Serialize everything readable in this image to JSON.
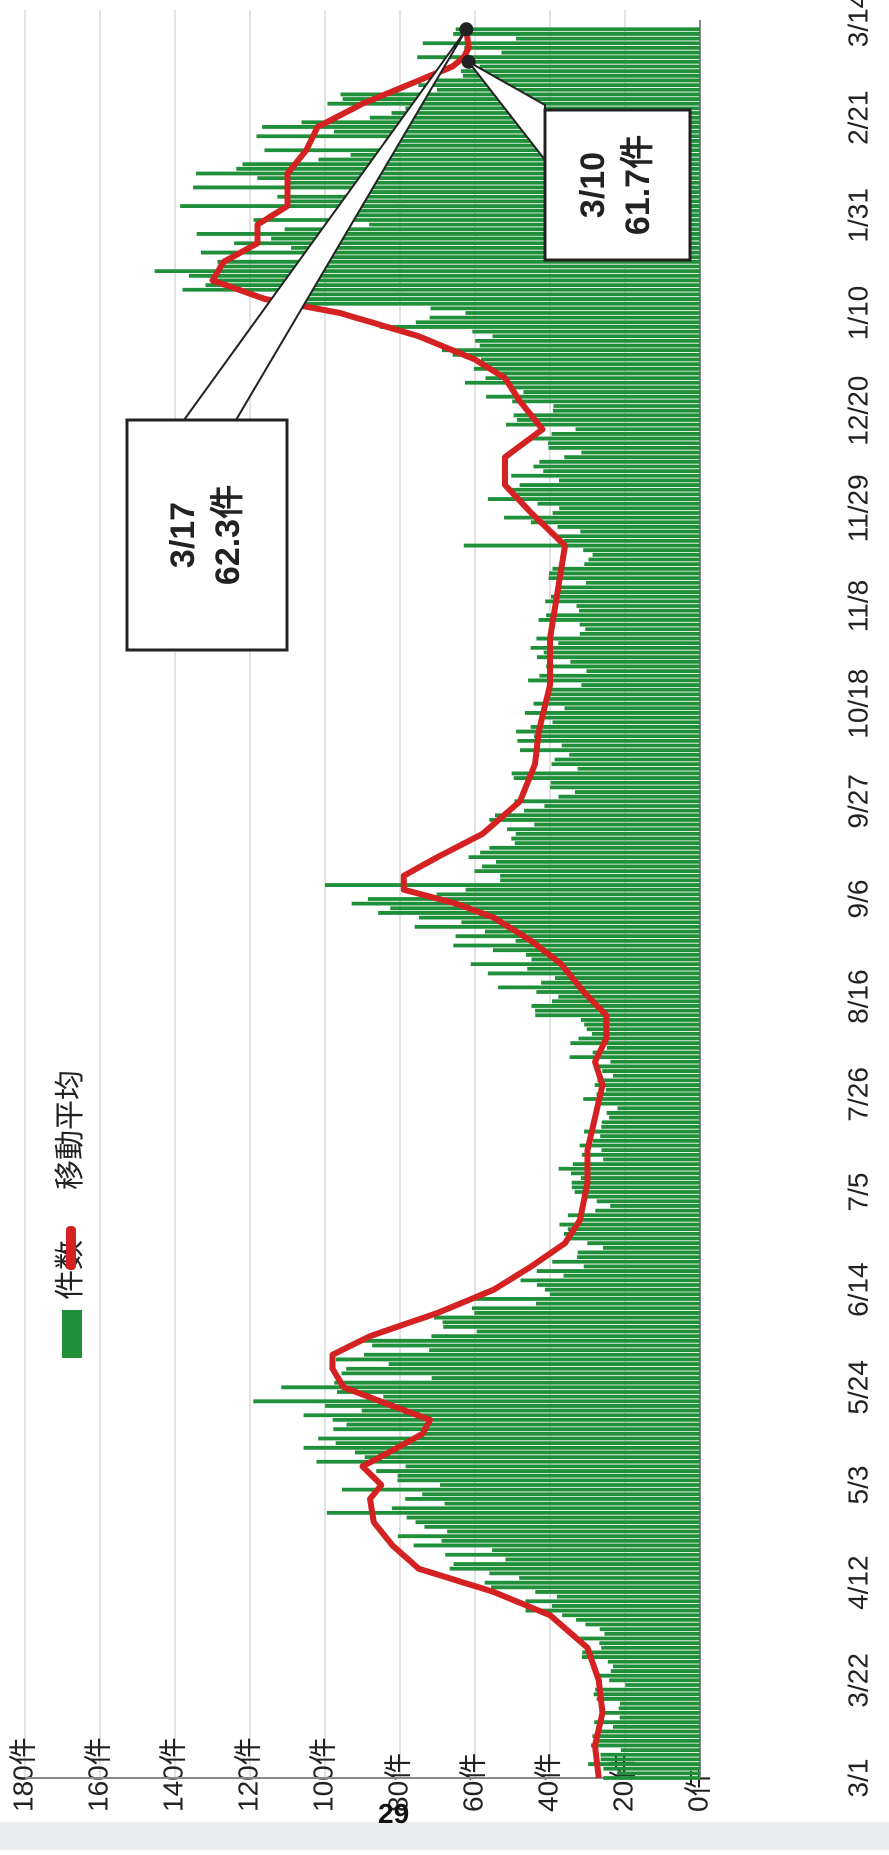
{
  "chart_data": {
    "type": "bar+line",
    "orientation": "rotated-90-clockwise",
    "title": "",
    "xlabel": "",
    "ylabel": "",
    "ylim": [
      0,
      180
    ],
    "y_ticks": [
      "0件",
      "20件",
      "40件",
      "60件",
      "80件",
      "100件",
      "120件",
      "140件",
      "160件",
      "180件"
    ],
    "x_ticks": [
      "3/1",
      "3/22",
      "4/12",
      "5/3",
      "5/24",
      "6/14",
      "7/5",
      "7/26",
      "8/16",
      "9/6",
      "9/27",
      "10/18",
      "11/8",
      "11/29",
      "12/20",
      "1/10",
      "1/31",
      "2/21",
      "3/14"
    ],
    "grid": true,
    "legend_position": "top-left",
    "series": [
      {
        "name": "件数",
        "type": "bar",
        "color": "#1f8f3a",
        "keypoints": [
          [
            0,
            24
          ],
          [
            10,
            25
          ],
          [
            20,
            24
          ],
          [
            30,
            28
          ],
          [
            40,
            45
          ],
          [
            50,
            70
          ],
          [
            60,
            88
          ],
          [
            70,
            90
          ],
          [
            80,
            100
          ],
          [
            90,
            85
          ],
          [
            100,
            58
          ],
          [
            110,
            35
          ],
          [
            120,
            30
          ],
          [
            130,
            32
          ],
          [
            140,
            28
          ],
          [
            150,
            24
          ],
          [
            160,
            35
          ],
          [
            170,
            45
          ],
          [
            180,
            55
          ],
          [
            188,
            85
          ],
          [
            195,
            60
          ],
          [
            210,
            42
          ],
          [
            225,
            40
          ],
          [
            240,
            38
          ],
          [
            255,
            35
          ],
          [
            265,
            35
          ],
          [
            275,
            50
          ],
          [
            285,
            38
          ],
          [
            295,
            45
          ],
          [
            305,
            58
          ],
          [
            315,
            80
          ],
          [
            320,
            115
          ],
          [
            325,
            120
          ],
          [
            335,
            110
          ],
          [
            340,
            115
          ],
          [
            350,
            105
          ],
          [
            360,
            95
          ],
          [
            370,
            65
          ],
          [
            375,
            60
          ]
        ]
      },
      {
        "name": "移動平均",
        "type": "line",
        "color": "#d42222",
        "keypoints": [
          [
            0,
            27
          ],
          [
            7,
            28
          ],
          [
            14,
            26
          ],
          [
            21,
            27
          ],
          [
            28,
            30
          ],
          [
            35,
            40
          ],
          [
            40,
            55
          ],
          [
            45,
            75
          ],
          [
            50,
            82
          ],
          [
            55,
            87
          ],
          [
            60,
            88
          ],
          [
            63,
            85
          ],
          [
            67,
            90
          ],
          [
            70,
            83
          ],
          [
            74,
            74
          ],
          [
            77,
            72
          ],
          [
            80,
            82
          ],
          [
            84,
            95
          ],
          [
            88,
            98
          ],
          [
            91,
            98
          ],
          [
            95,
            88
          ],
          [
            100,
            70
          ],
          [
            105,
            55
          ],
          [
            110,
            45
          ],
          [
            115,
            36
          ],
          [
            120,
            32
          ],
          [
            128,
            30
          ],
          [
            135,
            30
          ],
          [
            142,
            28
          ],
          [
            149,
            26
          ],
          [
            154,
            28
          ],
          [
            159,
            25
          ],
          [
            164,
            25
          ],
          [
            169,
            31
          ],
          [
            175,
            37
          ],
          [
            180,
            45
          ],
          [
            185,
            55
          ],
          [
            188,
            65
          ],
          [
            191,
            79
          ],
          [
            194,
            79
          ],
          [
            198,
            70
          ],
          [
            203,
            58
          ],
          [
            210,
            48
          ],
          [
            218,
            44
          ],
          [
            225,
            43
          ],
          [
            235,
            40
          ],
          [
            245,
            40
          ],
          [
            255,
            38
          ],
          [
            265,
            36
          ],
          [
            272,
            45
          ],
          [
            278,
            52
          ],
          [
            284,
            52
          ],
          [
            290,
            42
          ],
          [
            296,
            48
          ],
          [
            301,
            52
          ],
          [
            305,
            60
          ],
          [
            310,
            75
          ],
          [
            315,
            96
          ],
          [
            318,
            116
          ],
          [
            322,
            130
          ],
          [
            326,
            127
          ],
          [
            330,
            118
          ],
          [
            334,
            118
          ],
          [
            338,
            110
          ],
          [
            345,
            110
          ],
          [
            350,
            105
          ],
          [
            355,
            102
          ],
          [
            360,
            90
          ],
          [
            365,
            75
          ],
          [
            368,
            66
          ],
          [
            370,
            63
          ],
          [
            372,
            61.7
          ],
          [
            374,
            62
          ],
          [
            376,
            62.3
          ]
        ]
      }
    ],
    "annotations": [
      {
        "date": "3/17",
        "text_line1": "3/17",
        "text_line2": "62.3件",
        "value": 62.3
      },
      {
        "date": "3/10",
        "text_line1": "3/10",
        "text_line2": "61.7件",
        "value": 61.7
      }
    ]
  },
  "page": {
    "number": "29"
  }
}
